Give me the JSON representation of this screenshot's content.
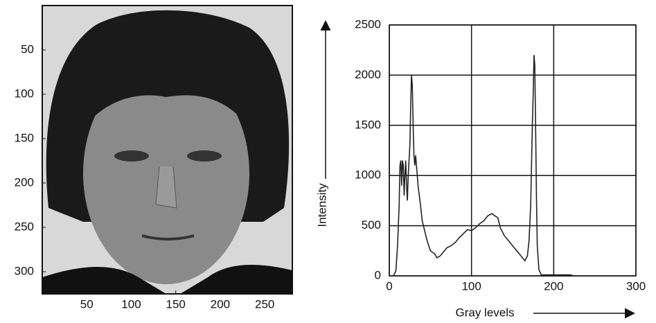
{
  "chart_data": [
    {
      "type": "image",
      "xlim": [
        0,
        281
      ],
      "ylim": [
        325,
        0
      ],
      "xticks": [
        50,
        100,
        150,
        200,
        250
      ],
      "yticks": [
        50,
        100,
        150,
        200,
        250,
        300
      ]
    },
    {
      "type": "line",
      "xlabel": "Gray levels",
      "ylabel": "Intensity",
      "xlim": [
        0,
        300
      ],
      "ylim": [
        0,
        2500
      ],
      "xticks": [
        0,
        100,
        200,
        300
      ],
      "yticks": [
        0,
        500,
        1000,
        1500,
        2000,
        2500
      ],
      "grid": true,
      "color": "#222222",
      "x": [
        0,
        5,
        8,
        10,
        12,
        13,
        14,
        15,
        16,
        17,
        18,
        19,
        20,
        21,
        22,
        23,
        25,
        26,
        27,
        28,
        29,
        30,
        31,
        32,
        33,
        35,
        38,
        40,
        43,
        46,
        50,
        55,
        58,
        62,
        65,
        70,
        75,
        80,
        85,
        90,
        95,
        100,
        105,
        110,
        115,
        120,
        125,
        128,
        132,
        135,
        140,
        145,
        150,
        155,
        160,
        165,
        168,
        170,
        172,
        174,
        175,
        176,
        177,
        178,
        179,
        180,
        182,
        185,
        190,
        200,
        220,
        225
      ],
      "values": [
        0,
        0,
        50,
        300,
        700,
        1100,
        1150,
        900,
        1150,
        1100,
        800,
        1000,
        1150,
        900,
        750,
        1000,
        1300,
        1700,
        2000,
        1900,
        1500,
        1200,
        1100,
        1200,
        1100,
        900,
        700,
        550,
        450,
        350,
        250,
        220,
        180,
        200,
        230,
        280,
        300,
        330,
        380,
        420,
        460,
        450,
        480,
        520,
        550,
        600,
        620,
        600,
        580,
        480,
        400,
        350,
        300,
        250,
        200,
        150,
        200,
        350,
        700,
        1500,
        1800,
        2200,
        2100,
        1500,
        800,
        300,
        60,
        10,
        10,
        10,
        10,
        0
      ]
    }
  ]
}
